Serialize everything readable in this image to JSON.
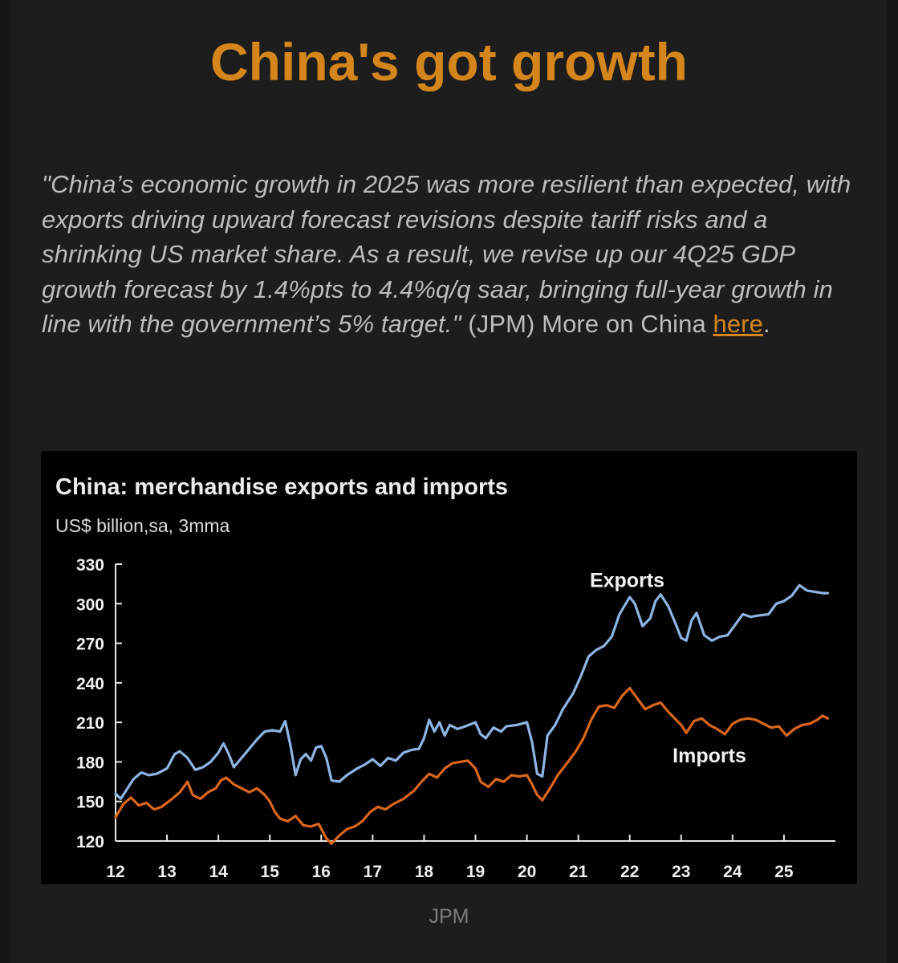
{
  "headline": "China's got growth",
  "quote": {
    "italic_text": "\"China’s economic growth in 2025 was more resilient than expected, with exports driving upward forecast revisions despite tariff risks and a shrinking US market share. As a result, we revise up our 4Q25 GDP growth forecast by 1.4%pts to 4.4%q/q saar, bringing full-year growth in line with the government’s 5% target.\"",
    "attribution": " (JPM) More on China ",
    "link_text": "here",
    "end": "."
  },
  "source": "JPM",
  "colors": {
    "background": "#1d1d1d",
    "headline": "#d4861d",
    "link": "#d4861d",
    "exports": "#8fb4e3",
    "imports": "#d9661b"
  },
  "chart_data": {
    "type": "line",
    "title": "China: merchandise exports and imports",
    "subtitle": "US$ billion,sa, 3mma",
    "ylim": [
      120,
      330
    ],
    "yticks": [
      120,
      150,
      180,
      210,
      240,
      270,
      300,
      330
    ],
    "xlim": [
      2012,
      2026
    ],
    "xticks": [
      {
        "label": "12",
        "x": 2012
      },
      {
        "label": "13",
        "x": 2013
      },
      {
        "label": "14",
        "x": 2014
      },
      {
        "label": "15",
        "x": 2015
      },
      {
        "label": "16",
        "x": 2016
      },
      {
        "label": "17",
        "x": 2017
      },
      {
        "label": "18",
        "x": 2018
      },
      {
        "label": "19",
        "x": 2019
      },
      {
        "label": "20",
        "x": 2020
      },
      {
        "label": "21",
        "x": 2021
      },
      {
        "label": "22",
        "x": 2022
      },
      {
        "label": "23",
        "x": 2023
      },
      {
        "label": "24",
        "x": 2024
      },
      {
        "label": "25",
        "x": 2025
      }
    ],
    "legend": "inline labels",
    "series": [
      {
        "name": "Exports",
        "label_position": [
          2021.95,
          318
        ],
        "points": [
          [
            2012.0,
            156
          ],
          [
            2012.1,
            152
          ],
          [
            2012.2,
            158
          ],
          [
            2012.35,
            167
          ],
          [
            2012.5,
            172
          ],
          [
            2012.65,
            170
          ],
          [
            2012.8,
            171
          ],
          [
            2013.0,
            175
          ],
          [
            2013.15,
            186
          ],
          [
            2013.25,
            188
          ],
          [
            2013.4,
            183
          ],
          [
            2013.55,
            174
          ],
          [
            2013.7,
            176
          ],
          [
            2013.85,
            180
          ],
          [
            2014.0,
            187
          ],
          [
            2014.1,
            194
          ],
          [
            2014.2,
            186
          ],
          [
            2014.3,
            176
          ],
          [
            2014.45,
            183
          ],
          [
            2014.6,
            190
          ],
          [
            2014.75,
            197
          ],
          [
            2014.9,
            203
          ],
          [
            2015.05,
            204
          ],
          [
            2015.2,
            203
          ],
          [
            2015.3,
            211
          ],
          [
            2015.4,
            193
          ],
          [
            2015.5,
            170
          ],
          [
            2015.6,
            182
          ],
          [
            2015.7,
            186
          ],
          [
            2015.8,
            181
          ],
          [
            2015.9,
            191
          ],
          [
            2016.0,
            192
          ],
          [
            2016.1,
            183
          ],
          [
            2016.2,
            166
          ],
          [
            2016.35,
            165
          ],
          [
            2016.5,
            170
          ],
          [
            2016.7,
            175
          ],
          [
            2016.85,
            178
          ],
          [
            2017.0,
            182
          ],
          [
            2017.15,
            177
          ],
          [
            2017.3,
            183
          ],
          [
            2017.45,
            181
          ],
          [
            2017.6,
            187
          ],
          [
            2017.75,
            189
          ],
          [
            2017.9,
            190
          ],
          [
            2018.0,
            198
          ],
          [
            2018.1,
            212
          ],
          [
            2018.2,
            203
          ],
          [
            2018.3,
            210
          ],
          [
            2018.4,
            200
          ],
          [
            2018.5,
            208
          ],
          [
            2018.65,
            205
          ],
          [
            2018.8,
            207
          ],
          [
            2019.0,
            210
          ],
          [
            2019.1,
            201
          ],
          [
            2019.2,
            198
          ],
          [
            2019.35,
            206
          ],
          [
            2019.5,
            203
          ],
          [
            2019.6,
            207
          ],
          [
            2019.8,
            208
          ],
          [
            2020.0,
            210
          ],
          [
            2020.1,
            195
          ],
          [
            2020.2,
            171
          ],
          [
            2020.3,
            169
          ],
          [
            2020.4,
            200
          ],
          [
            2020.55,
            208
          ],
          [
            2020.7,
            220
          ],
          [
            2020.9,
            232
          ],
          [
            2021.05,
            245
          ],
          [
            2021.2,
            260
          ],
          [
            2021.35,
            265
          ],
          [
            2021.5,
            268
          ],
          [
            2021.65,
            275
          ],
          [
            2021.8,
            292
          ],
          [
            2022.0,
            305
          ],
          [
            2022.1,
            300
          ],
          [
            2022.25,
            283
          ],
          [
            2022.4,
            289
          ],
          [
            2022.5,
            302
          ],
          [
            2022.6,
            307
          ],
          [
            2022.75,
            298
          ],
          [
            2022.9,
            284
          ],
          [
            2023.0,
            274
          ],
          [
            2023.1,
            272
          ],
          [
            2023.2,
            287
          ],
          [
            2023.3,
            293
          ],
          [
            2023.45,
            276
          ],
          [
            2023.6,
            272
          ],
          [
            2023.75,
            275
          ],
          [
            2023.9,
            276
          ],
          [
            2024.05,
            284
          ],
          [
            2024.2,
            292
          ],
          [
            2024.35,
            290
          ],
          [
            2024.5,
            291
          ],
          [
            2024.7,
            292
          ],
          [
            2024.85,
            300
          ],
          [
            2025.0,
            302
          ],
          [
            2025.15,
            306
          ],
          [
            2025.3,
            314
          ],
          [
            2025.45,
            310
          ],
          [
            2025.6,
            309
          ],
          [
            2025.75,
            308
          ],
          [
            2025.85,
            308
          ]
        ]
      },
      {
        "name": "Imports",
        "label_position": [
          2023.55,
          185
        ],
        "points": [
          [
            2012.0,
            138
          ],
          [
            2012.15,
            148
          ],
          [
            2012.3,
            153
          ],
          [
            2012.45,
            147
          ],
          [
            2012.6,
            149
          ],
          [
            2012.75,
            144
          ],
          [
            2012.9,
            146
          ],
          [
            2013.1,
            152
          ],
          [
            2013.25,
            157
          ],
          [
            2013.4,
            165
          ],
          [
            2013.5,
            155
          ],
          [
            2013.65,
            152
          ],
          [
            2013.8,
            157
          ],
          [
            2013.95,
            160
          ],
          [
            2014.05,
            166
          ],
          [
            2014.15,
            168
          ],
          [
            2014.3,
            163
          ],
          [
            2014.45,
            160
          ],
          [
            2014.6,
            157
          ],
          [
            2014.75,
            160
          ],
          [
            2014.9,
            155
          ],
          [
            2015.0,
            150
          ],
          [
            2015.1,
            142
          ],
          [
            2015.2,
            137
          ],
          [
            2015.35,
            135
          ],
          [
            2015.5,
            139
          ],
          [
            2015.65,
            132
          ],
          [
            2015.8,
            131
          ],
          [
            2015.95,
            133
          ],
          [
            2016.1,
            122
          ],
          [
            2016.2,
            118
          ],
          [
            2016.35,
            124
          ],
          [
            2016.5,
            129
          ],
          [
            2016.65,
            131
          ],
          [
            2016.8,
            135
          ],
          [
            2016.95,
            142
          ],
          [
            2017.1,
            146
          ],
          [
            2017.25,
            144
          ],
          [
            2017.4,
            148
          ],
          [
            2017.6,
            152
          ],
          [
            2017.8,
            158
          ],
          [
            2017.95,
            165
          ],
          [
            2018.1,
            171
          ],
          [
            2018.25,
            168
          ],
          [
            2018.4,
            175
          ],
          [
            2018.55,
            179
          ],
          [
            2018.7,
            180
          ],
          [
            2018.85,
            181
          ],
          [
            2019.0,
            175
          ],
          [
            2019.1,
            165
          ],
          [
            2019.25,
            161
          ],
          [
            2019.4,
            167
          ],
          [
            2019.55,
            165
          ],
          [
            2019.7,
            170
          ],
          [
            2019.85,
            169
          ],
          [
            2020.0,
            170
          ],
          [
            2020.1,
            163
          ],
          [
            2020.2,
            155
          ],
          [
            2020.3,
            151
          ],
          [
            2020.45,
            160
          ],
          [
            2020.6,
            170
          ],
          [
            2020.8,
            180
          ],
          [
            2020.95,
            188
          ],
          [
            2021.1,
            198
          ],
          [
            2021.25,
            212
          ],
          [
            2021.4,
            222
          ],
          [
            2021.55,
            223
          ],
          [
            2021.7,
            221
          ],
          [
            2021.85,
            230
          ],
          [
            2022.0,
            236
          ],
          [
            2022.15,
            228
          ],
          [
            2022.3,
            220
          ],
          [
            2022.45,
            223
          ],
          [
            2022.6,
            225
          ],
          [
            2022.75,
            218
          ],
          [
            2022.9,
            212
          ],
          [
            2023.0,
            208
          ],
          [
            2023.1,
            202
          ],
          [
            2023.25,
            211
          ],
          [
            2023.4,
            213
          ],
          [
            2023.55,
            208
          ],
          [
            2023.7,
            205
          ],
          [
            2023.85,
            201
          ],
          [
            2024.0,
            209
          ],
          [
            2024.15,
            212
          ],
          [
            2024.3,
            213
          ],
          [
            2024.45,
            212
          ],
          [
            2024.6,
            209
          ],
          [
            2024.75,
            206
          ],
          [
            2024.9,
            207
          ],
          [
            2025.05,
            200
          ],
          [
            2025.2,
            205
          ],
          [
            2025.35,
            208
          ],
          [
            2025.5,
            209
          ],
          [
            2025.65,
            212
          ],
          [
            2025.75,
            215
          ],
          [
            2025.85,
            213
          ]
        ]
      }
    ]
  }
}
